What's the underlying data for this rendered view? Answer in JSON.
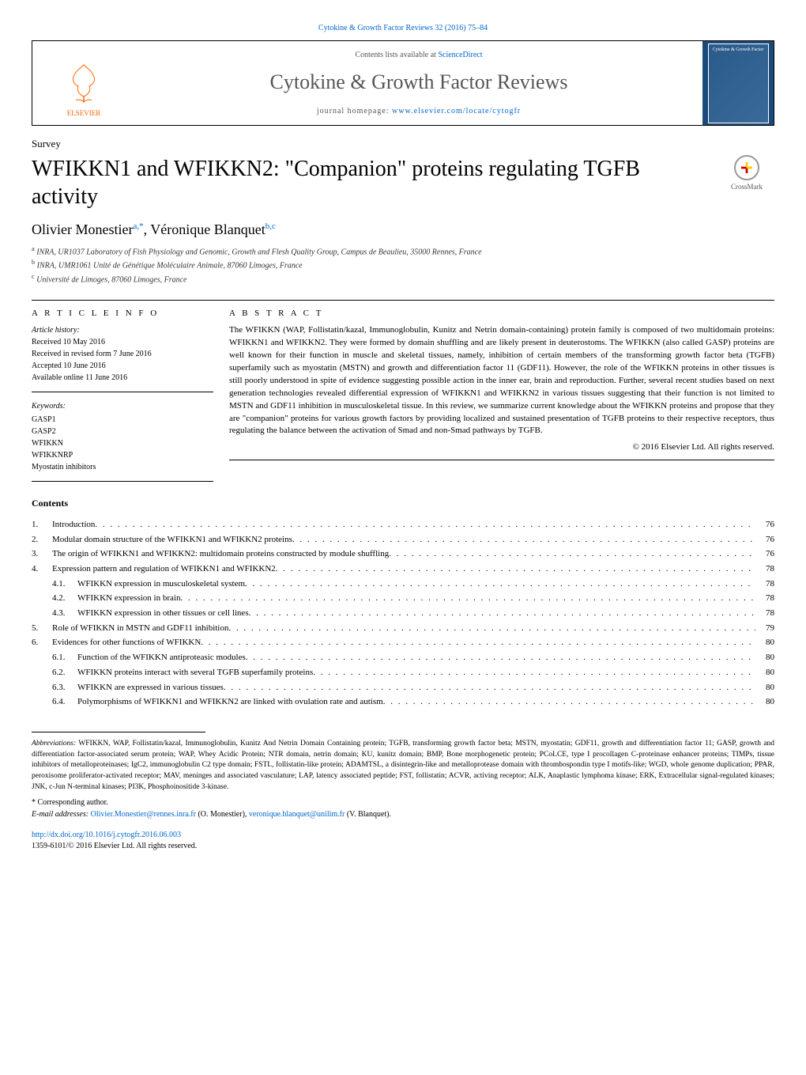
{
  "header": {
    "citation": "Cytokine & Growth Factor Reviews 32 (2016) 75–84",
    "contents_available": "Contents lists available at",
    "sciencedirect": "ScienceDirect",
    "journal_title": "Cytokine & Growth Factor Reviews",
    "homepage_label": "journal homepage:",
    "homepage_url": "www.elsevier.com/locate/cytogfr",
    "publisher": "ELSEVIER",
    "cover_text": "Cytokine & Growth Factor"
  },
  "article": {
    "type": "Survey",
    "title": "WFIKKN1 and WFIKKN2: \"Companion\" proteins regulating TGFB activity",
    "crossmark": "CrossMark",
    "authors_html": "Olivier Monestier",
    "author1_name": "Olivier Monestier",
    "author1_sup": "a,*",
    "author2_name": ", Véronique Blanquet",
    "author2_sup": "b,c",
    "affiliations": [
      {
        "sup": "a",
        "text": " INRA, UR1037 Laboratory of Fish Physiology and Genomic, Growth and Flesh Quality Group, Campus de Beaulieu, 35000 Rennes, France"
      },
      {
        "sup": "b",
        "text": " INRA, UMR1061 Unité de Génétique Moléculaire Animale, 87060 Limoges, France"
      },
      {
        "sup": "c",
        "text": " Université de Limoges, 87060 Limoges, France"
      }
    ]
  },
  "info": {
    "heading": "A R T I C L E   I N F O",
    "history_label": "Article history:",
    "received": "Received 10 May 2016",
    "revised": "Received in revised form 7 June 2016",
    "accepted": "Accepted 10 June 2016",
    "online": "Available online 11 June 2016",
    "keywords_label": "Keywords:",
    "keywords": [
      "GASP1",
      "GASP2",
      "WFIKKN",
      "WFIKKNRP",
      "Myostatin inhibitors"
    ]
  },
  "abstract": {
    "heading": "A B S T R A C T",
    "text": "The WFIKKN (WAP, Follistatin/kazal, Immunoglobulin, Kunitz and Netrin domain-containing) protein family is composed of two multidomain proteins: WFIKKN1 and WFIKKN2. They were formed by domain shuffling and are likely present in deuterostoms. The WFIKKN (also called GASP) proteins are well known for their function in muscle and skeletal tissues, namely, inhibition of certain members of the transforming growth factor beta (TGFB) superfamily such as myostatin (MSTN) and growth and differentiation factor 11 (GDF11). However, the role of the WFIKKN proteins in other tissues is still poorly understood in spite of evidence suggesting possible action in the inner ear, brain and reproduction. Further, several recent studies based on next generation technologies revealed differential expression of WFIKKN1 and WFIKKN2 in various tissues suggesting that their function is not limited to MSTN and GDF11 inhibition in musculoskeletal tissue. In this review, we summarize current knowledge about the WFIKKN proteins and propose that they are \"companion\" proteins for various growth factors by providing localized and sustained presentation of TGFB proteins to their respective receptors, thus regulating the balance between the activation of Smad and non-Smad pathways by TGFB.",
    "copyright": "© 2016 Elsevier Ltd. All rights reserved."
  },
  "contents": {
    "heading": "Contents",
    "items": [
      {
        "num": "1.",
        "text": "Introduction",
        "page": "76"
      },
      {
        "num": "2.",
        "text": "Modular domain structure of the WFIKKN1 and WFIKKN2 proteins",
        "page": "76"
      },
      {
        "num": "3.",
        "text": "The origin of WFIKKN1 and WFIKKN2: multidomain proteins constructed by module shuffling",
        "page": "76"
      },
      {
        "num": "4.",
        "text": "Expression pattern and regulation of WFIKKN1 and WFIKKN2",
        "page": "78"
      },
      {
        "num": "",
        "sub": "4.1.",
        "text": "WFIKKN expression in musculoskeletal system",
        "page": "78"
      },
      {
        "num": "",
        "sub": "4.2.",
        "text": "WFIKKN expression in brain",
        "page": "78"
      },
      {
        "num": "",
        "sub": "4.3.",
        "text": "WFIKKN expression in other tissues or cell lines",
        "page": "78"
      },
      {
        "num": "5.",
        "text": "Role of WFIKKN in MSTN and GDF11 inhibition",
        "page": "79"
      },
      {
        "num": "6.",
        "text": "Evidences for other functions of WFIKKN",
        "page": "80"
      },
      {
        "num": "",
        "sub": "6.1.",
        "text": "Function of the WFIKKN antiproteasic modules",
        "page": "80"
      },
      {
        "num": "",
        "sub": "6.2.",
        "text": "WFIKKN proteins interact with several TGFB superfamily proteins",
        "page": "80"
      },
      {
        "num": "",
        "sub": "6.3.",
        "text": "WFIKKN are expressed in various tissues",
        "page": "80"
      },
      {
        "num": "",
        "sub": "6.4.",
        "text": "Polymorphisms of WFIKKN1 and WFIKKN2 are linked with ovulation rate and autism",
        "page": "80"
      }
    ]
  },
  "footer": {
    "abbrev_label": "Abbreviations:",
    "abbrev_text": " WFIKKN, WAP, Follistatin/kazal, Immunoglobulin, Kunitz And Netrin Domain Containing protein; TGFB, transforming growth factor beta; MSTN, myostatin; GDF11, growth and differentiation factor 11; GASP, growth and differentiation factor-associated serum protein; WAP, Whey Acidic Protein; NTR domain, netrin domain; KU, kunitz domain; BMP, Bone morphogenetic protein; PCoLCE, type I procollagen C-proteinase enhancer proteins; TIMPs, tissue inhibitors of metalloproteinases; IgC2, immunoglobulin C2 type domain; FSTL, follistatin-like protein; ADAMTSL, a disintegrin-like and metalloprotease domain with thrombospondin type I motifs-like; WGD, whole genome duplication; PPAR, peroxisome proliferator-activated receptor; MAV, meninges and associated vasculature; LAP, latency associated peptide; FST, follistatin; ACVR, activing receptor; ALK, Anaplastic lymphoma kinase; ERK, Extracellular signal-regulated kinases; JNK, c-Jun N-terminal kinases; PI3K, Phosphoinositide 3-kinase.",
    "corresponding_label": "* Corresponding author.",
    "email_label": "E-mail addresses:",
    "email1": "Olivier.Monestier@rennes.inra.fr",
    "email1_who": " (O. Monestier), ",
    "email2": "veronique.blanquet@unilim.fr",
    "email2_who": " (V. Blanquet).",
    "doi": "http://dx.doi.org/10.1016/j.cytogfr.2016.06.003",
    "issn_line": "1359-6101/© 2016 Elsevier Ltd. All rights reserved."
  },
  "colors": {
    "link": "#0066cc",
    "elsevier_orange": "#ff6600",
    "cover_bg": "#1a4a7a"
  }
}
